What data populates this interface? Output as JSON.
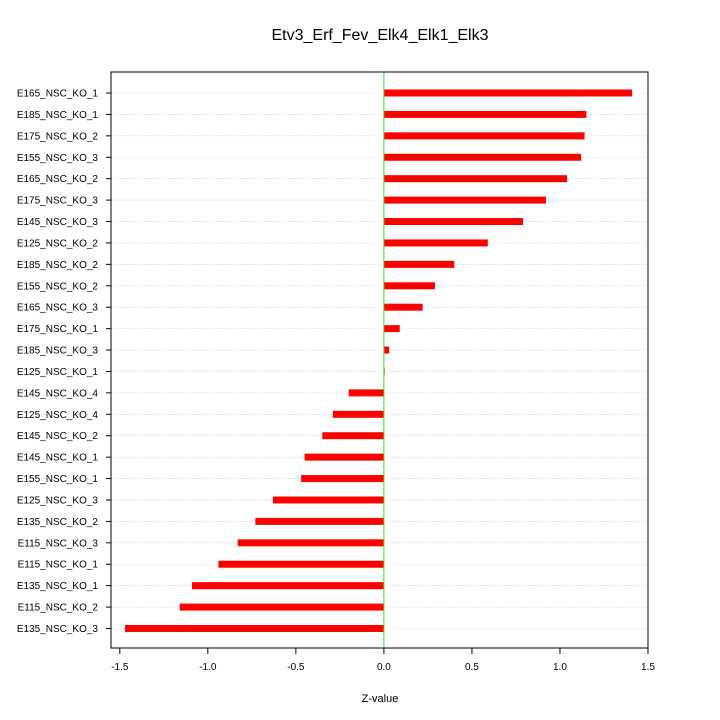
{
  "chart_data": {
    "type": "bar",
    "orientation": "horizontal",
    "title": "Etv3_Erf_Fev_Elk4_Elk1_Elk3",
    "xlabel": "Z-value",
    "ylabel": "",
    "xlim": [
      -1.55,
      1.5
    ],
    "xticks": [
      -1.5,
      -1.0,
      -0.5,
      0.0,
      0.5,
      1.0,
      1.5
    ],
    "xtick_labels": [
      "-1.5",
      "-1.0",
      "-0.5",
      "0.0",
      "0.5",
      "1.0",
      "1.5"
    ],
    "grid": true,
    "zero_line_color": "#33dd33",
    "bar_color": "#ff0000",
    "categories": [
      "E165_NSC_KO_1",
      "E185_NSC_KO_1",
      "E175_NSC_KO_2",
      "E155_NSC_KO_3",
      "E165_NSC_KO_2",
      "E175_NSC_KO_3",
      "E145_NSC_KO_3",
      "E125_NSC_KO_2",
      "E185_NSC_KO_2",
      "E155_NSC_KO_2",
      "E165_NSC_KO_3",
      "E175_NSC_KO_1",
      "E185_NSC_KO_3",
      "E125_NSC_KO_1",
      "E145_NSC_KO_4",
      "E125_NSC_KO_4",
      "E145_NSC_KO_2",
      "E145_NSC_KO_1",
      "E155_NSC_KO_1",
      "E125_NSC_KO_3",
      "E135_NSC_KO_2",
      "E115_NSC_KO_3",
      "E115_NSC_KO_1",
      "E135_NSC_KO_1",
      "E115_NSC_KO_2",
      "E135_NSC_KO_3"
    ],
    "values": [
      1.41,
      1.15,
      1.14,
      1.12,
      1.04,
      0.92,
      0.79,
      0.59,
      0.4,
      0.29,
      0.22,
      0.09,
      0.03,
      0.0,
      -0.2,
      -0.29,
      -0.35,
      -0.45,
      -0.47,
      -0.63,
      -0.73,
      -0.83,
      -0.94,
      -1.09,
      -1.16,
      -1.47
    ]
  }
}
